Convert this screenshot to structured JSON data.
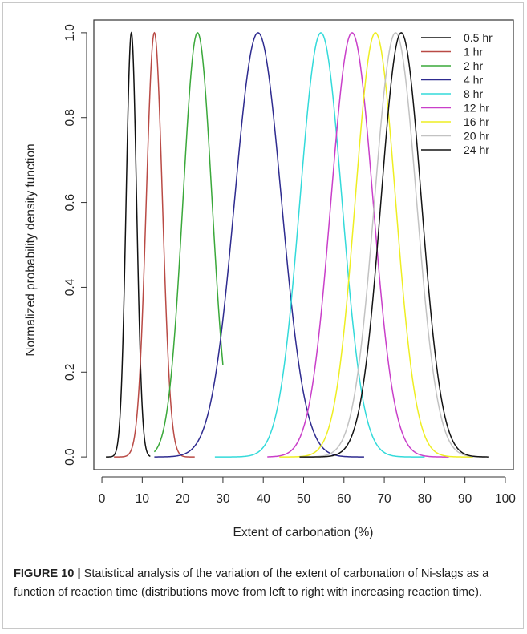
{
  "figure": {
    "caption_lead": "FIGURE 10 |",
    "caption_text": " Statistical analysis of the variation of the extent of carbonation of Ni-slags as a function of reaction time (distributions move from left to right with increasing reaction time)."
  },
  "chart_data": {
    "type": "line",
    "title": "",
    "xlabel": "Extent of carbonation (%)",
    "ylabel": "Normalized probability density function",
    "xlim": [
      -2,
      102
    ],
    "ylim": [
      -0.03,
      1.03
    ],
    "xticks": [
      0,
      10,
      20,
      30,
      40,
      50,
      60,
      70,
      80,
      90,
      100
    ],
    "yticks": [
      0.0,
      0.2,
      0.4,
      0.6,
      0.8,
      1.0
    ],
    "ytick_labels": [
      "0.0",
      "0.2",
      "0.4",
      "0.6",
      "0.8",
      "1.0"
    ],
    "grid": false,
    "legend_position": "top-right",
    "series": [
      {
        "name": "0.5 hr",
        "color": "#111111",
        "mean": 7.3,
        "sd": 1.3,
        "x_range": [
          1,
          12
        ]
      },
      {
        "name": "1 hr",
        "color": "#b94a45",
        "mean": 13.0,
        "sd": 2.0,
        "x_range": [
          3,
          23
        ]
      },
      {
        "name": "2 hr",
        "color": "#3aa83a",
        "mean": 23.7,
        "sd": 3.6,
        "x_range": [
          13,
          30
        ]
      },
      {
        "name": "4 hr",
        "color": "#2e2b8f",
        "mean": 38.7,
        "sd": 5.8,
        "x_range": [
          13,
          65
        ]
      },
      {
        "name": "8 hr",
        "color": "#33dada",
        "mean": 54.3,
        "sd": 5.2,
        "x_range": [
          28,
          80
        ]
      },
      {
        "name": "12 hr",
        "color": "#c93fc9",
        "mean": 62.0,
        "sd": 5.2,
        "x_range": [
          41,
          86
        ]
      },
      {
        "name": "16 hr",
        "color": "#eeee22",
        "mean": 67.8,
        "sd": 5.0,
        "x_range": [
          44,
          92
        ]
      },
      {
        "name": "20 hr",
        "color": "#c2c2c2",
        "mean": 72.8,
        "sd": 5.2,
        "x_range": [
          50,
          95
        ]
      },
      {
        "name": "24 hr",
        "color": "#141414",
        "mean": 74.2,
        "sd": 5.0,
        "x_range": [
          49,
          96
        ]
      }
    ]
  }
}
